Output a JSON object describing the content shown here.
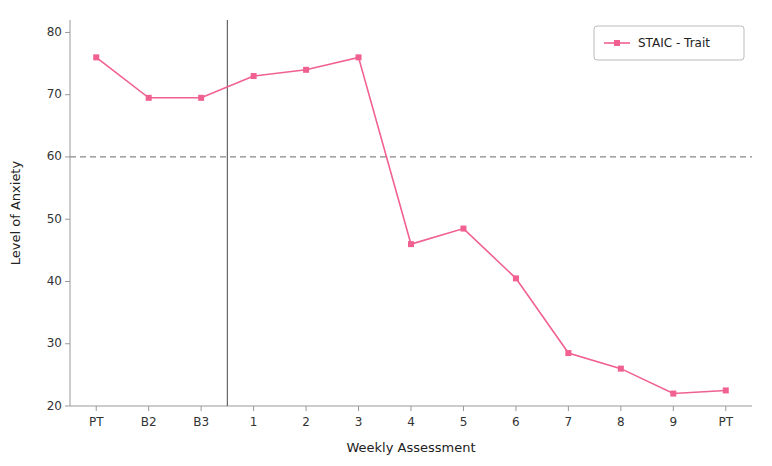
{
  "chart_data": {
    "type": "line",
    "xlabel": "Weekly Assessment",
    "ylabel": "Level of Anxiety",
    "categories": [
      "PT",
      "B2",
      "B3",
      "1",
      "2",
      "3",
      "4",
      "5",
      "6",
      "7",
      "8",
      "9",
      "PT"
    ],
    "series": [
      {
        "name": "STAIC - Trait",
        "color": "#F06090",
        "marker": "square",
        "line_style": "solid",
        "values": [
          76,
          69.5,
          69.5,
          73,
          74,
          76,
          46,
          48.5,
          40.5,
          28.5,
          26,
          22,
          22.5
        ]
      }
    ],
    "reference_lines": [
      {
        "y": 60,
        "color": "#888888",
        "line_style": "dashed"
      },
      {
        "x": 2.5,
        "color": "#666666",
        "line_style": "solid"
      }
    ],
    "ylim": [
      20,
      82
    ],
    "yticks": [
      20,
      30,
      40,
      50,
      60,
      70,
      80
    ],
    "grid": false,
    "legend": "upper right"
  }
}
